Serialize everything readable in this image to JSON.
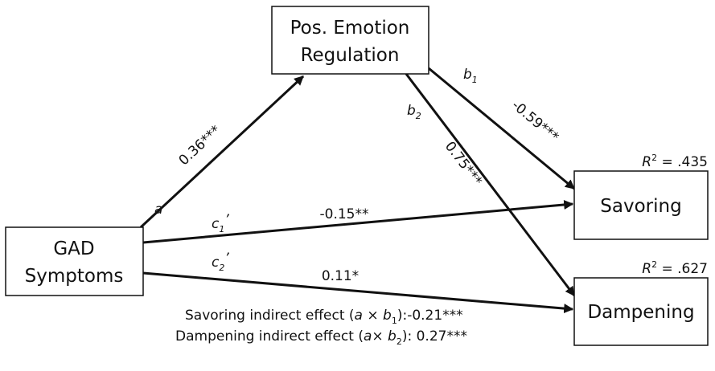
{
  "nodes": [
    {
      "lines": [
        "Pos. Emotion",
        "Regulation"
      ]
    },
    {
      "lines": [
        "GAD",
        "Symptoms"
      ]
    },
    {
      "lines": [
        "Savoring"
      ]
    },
    {
      "lines": [
        "Dampening"
      ]
    }
  ],
  "r_squared": [
    {
      "symbol": "R",
      "superscript": "2",
      "value": " = .435"
    },
    {
      "symbol": "R",
      "superscript": "2",
      "value": " = .627"
    }
  ],
  "paths": [
    {
      "symbol": "a",
      "coefficient": "0.36***"
    },
    {
      "symbol": "b",
      "subscript": "1",
      "coefficient": "-0.59***"
    },
    {
      "symbol": "b",
      "subscript": "2",
      "coefficient": "0.75***"
    },
    {
      "symbol": "c",
      "subscript": "1",
      "prime": "’",
      "coefficient": "-0.15**"
    },
    {
      "symbol": "c",
      "subscript": "2",
      "prime": "’",
      "coefficient": "0.11*"
    }
  ],
  "notes": [
    {
      "segments": [
        {
          "text": "Savoring indirect effect ("
        },
        {
          "text": "a",
          "style": "italic"
        },
        {
          "text": " × "
        },
        {
          "text": "b",
          "style": "italic"
        },
        {
          "text": "1",
          "style": "subscript"
        },
        {
          "text": "):-0.21***"
        }
      ]
    },
    {
      "segments": [
        {
          "text": "Dampening indirect effect ("
        },
        {
          "text": "a",
          "style": "italic"
        },
        {
          "text": "× "
        },
        {
          "text": "b",
          "style": "italic"
        },
        {
          "text": "2",
          "style": "subscript"
        },
        {
          "text": "): 0.27***"
        }
      ]
    }
  ]
}
